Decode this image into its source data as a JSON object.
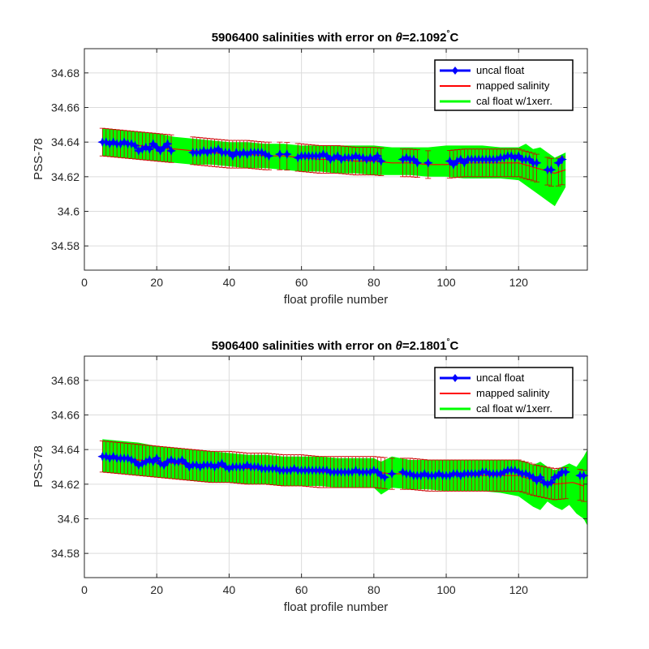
{
  "chart_data": [
    {
      "type": "line",
      "title_main": "5906400 salinities with error on ",
      "title_theta": "θ",
      "title_value": "=2.1092",
      "title_degree": "°",
      "title_unit": "C",
      "xlabel": "float profile number",
      "ylabel": "PSS-78",
      "xlim": [
        0,
        139
      ],
      "ylim": [
        34.566,
        34.694
      ],
      "xticks": [
        "0",
        "20",
        "40",
        "60",
        "80",
        "100",
        "120"
      ],
      "xtick_values": [
        0,
        20,
        40,
        60,
        80,
        100,
        120
      ],
      "yticks": [
        "34.58",
        "34.6",
        "34.62",
        "34.64",
        "34.66",
        "34.68"
      ],
      "ytick_values": [
        34.58,
        34.6,
        34.62,
        34.64,
        34.66,
        34.68
      ],
      "grid": true,
      "legend_position": "top-right",
      "legend": [
        "uncal float",
        "mapped salinity",
        "cal float w/1xerr."
      ],
      "colors": {
        "float": "#0000ff",
        "mapped": "#ff0000",
        "errorbar": "#cc0000",
        "band": "#00ff00"
      },
      "series": [
        {
          "name": "uncal float",
          "x": [
            5,
            6,
            7,
            8,
            9,
            10,
            11,
            12,
            13,
            14,
            15,
            16,
            17,
            18,
            19,
            20,
            21,
            22,
            23,
            24,
            30,
            31,
            32,
            33,
            34,
            35,
            36,
            37,
            38,
            39,
            40,
            41,
            42,
            43,
            44,
            45,
            46,
            47,
            48,
            49,
            50,
            51,
            54,
            56,
            59,
            60,
            61,
            62,
            63,
            64,
            65,
            66,
            67,
            68,
            69,
            70,
            71,
            72,
            73,
            74,
            75,
            76,
            77,
            78,
            79,
            80,
            81,
            82,
            88,
            89,
            90,
            91,
            92,
            95,
            101,
            102,
            103,
            104,
            105,
            106,
            107,
            108,
            109,
            110,
            111,
            112,
            113,
            114,
            115,
            116,
            117,
            118,
            119,
            120,
            121,
            122,
            123,
            124,
            125,
            128,
            129,
            131,
            132
          ],
          "y": [
            34.64,
            34.64,
            34.639,
            34.64,
            34.639,
            34.639,
            34.64,
            34.639,
            34.639,
            34.638,
            34.635,
            34.636,
            34.637,
            34.636,
            34.639,
            34.637,
            34.635,
            34.637,
            34.639,
            34.635,
            34.634,
            34.634,
            34.634,
            34.635,
            34.634,
            34.635,
            34.635,
            34.636,
            34.634,
            34.634,
            34.634,
            34.632,
            34.634,
            34.633,
            34.634,
            34.633,
            34.634,
            34.634,
            34.634,
            34.634,
            34.633,
            34.632,
            34.633,
            34.633,
            34.631,
            34.632,
            34.632,
            34.632,
            34.632,
            34.632,
            34.632,
            34.633,
            34.632,
            34.63,
            34.631,
            34.632,
            34.63,
            34.631,
            34.631,
            34.631,
            34.632,
            34.631,
            34.631,
            34.63,
            34.631,
            34.63,
            34.632,
            34.629,
            34.63,
            34.631,
            34.63,
            34.63,
            34.628,
            34.628,
            34.629,
            34.627,
            34.629,
            34.63,
            34.628,
            34.63,
            34.63,
            34.63,
            34.63,
            34.63,
            34.63,
            34.63,
            34.63,
            34.63,
            34.631,
            34.631,
            34.632,
            34.632,
            34.631,
            34.632,
            34.63,
            34.63,
            34.63,
            34.628,
            34.628,
            34.624,
            34.624,
            34.628,
            34.63
          ]
        },
        {
          "name": "mapped salinity",
          "x": [
            5,
            10,
            15,
            20,
            25,
            30,
            35,
            40,
            45,
            50,
            55,
            60,
            65,
            70,
            75,
            80,
            85,
            90,
            95,
            100,
            105,
            110,
            115,
            120,
            125,
            130,
            133
          ],
          "y": [
            34.64,
            34.639,
            34.638,
            34.637,
            34.636,
            34.635,
            34.634,
            34.633,
            34.633,
            34.632,
            34.632,
            34.631,
            34.63,
            34.63,
            34.629,
            34.629,
            34.628,
            34.628,
            34.627,
            34.627,
            34.628,
            34.628,
            34.628,
            34.628,
            34.625,
            34.622,
            34.624
          ]
        }
      ],
      "band": {
        "x": [
          5,
          10,
          15,
          20,
          25,
          30,
          35,
          40,
          45,
          50,
          55,
          60,
          65,
          70,
          75,
          80,
          85,
          90,
          95,
          100,
          105,
          110,
          115,
          120,
          122,
          124,
          126,
          128,
          130,
          133
        ],
        "upper": [
          34.648,
          34.647,
          34.646,
          34.645,
          34.643,
          34.642,
          34.641,
          34.64,
          34.64,
          34.639,
          34.639,
          34.638,
          34.638,
          34.638,
          34.638,
          34.638,
          34.637,
          34.637,
          34.637,
          34.638,
          34.638,
          34.638,
          34.637,
          34.637,
          34.639,
          34.636,
          34.637,
          34.634,
          34.631,
          34.634
        ],
        "lower": [
          34.632,
          34.631,
          34.63,
          34.629,
          34.628,
          34.627,
          34.627,
          34.626,
          34.625,
          34.625,
          34.624,
          34.623,
          34.623,
          34.622,
          34.622,
          34.621,
          34.621,
          34.621,
          34.62,
          34.62,
          34.619,
          34.619,
          34.619,
          34.618,
          34.615,
          34.612,
          34.609,
          34.606,
          34.603,
          34.614
        ]
      },
      "error_halfwidth": 0.008
    },
    {
      "type": "line",
      "title_main": "5906400 salinities with error on ",
      "title_theta": "θ",
      "title_value": "=2.1801",
      "title_degree": "°",
      "title_unit": "C",
      "xlabel": "float profile number",
      "ylabel": "PSS-78",
      "xlim": [
        0,
        139
      ],
      "ylim": [
        34.566,
        34.694
      ],
      "xticks": [
        "0",
        "20",
        "40",
        "60",
        "80",
        "100",
        "120"
      ],
      "xtick_values": [
        0,
        20,
        40,
        60,
        80,
        100,
        120
      ],
      "yticks": [
        "34.58",
        "34.6",
        "34.62",
        "34.64",
        "34.66",
        "34.68"
      ],
      "ytick_values": [
        34.58,
        34.6,
        34.62,
        34.64,
        34.66,
        34.68
      ],
      "grid": true,
      "legend_position": "top-right",
      "legend": [
        "uncal float",
        "mapped salinity",
        "cal float w/1xerr."
      ],
      "colors": {
        "float": "#0000ff",
        "mapped": "#ff0000",
        "errorbar": "#cc0000",
        "band": "#00ff00"
      },
      "series": [
        {
          "name": "uncal float",
          "x": [
            5,
            6,
            7,
            8,
            9,
            10,
            11,
            12,
            13,
            14,
            15,
            16,
            17,
            18,
            19,
            20,
            21,
            22,
            23,
            24,
            25,
            26,
            27,
            28,
            29,
            30,
            31,
            32,
            33,
            34,
            35,
            36,
            37,
            38,
            39,
            40,
            41,
            42,
            43,
            44,
            45,
            46,
            47,
            48,
            49,
            50,
            51,
            52,
            53,
            54,
            55,
            56,
            57,
            58,
            59,
            60,
            61,
            62,
            63,
            64,
            65,
            66,
            67,
            68,
            69,
            70,
            71,
            72,
            73,
            74,
            75,
            76,
            77,
            78,
            79,
            80,
            81,
            82,
            83,
            85,
            88,
            89,
            90,
            91,
            92,
            93,
            94,
            95,
            96,
            97,
            98,
            99,
            100,
            101,
            102,
            103,
            104,
            105,
            106,
            107,
            108,
            109,
            110,
            111,
            112,
            113,
            114,
            115,
            116,
            117,
            118,
            119,
            120,
            121,
            122,
            123,
            124,
            125,
            126,
            127,
            128,
            129,
            130,
            131,
            132,
            133,
            137,
            138
          ],
          "y": [
            34.636,
            34.636,
            34.635,
            34.636,
            34.635,
            34.635,
            34.635,
            34.635,
            34.634,
            34.633,
            34.631,
            34.632,
            34.633,
            34.634,
            34.633,
            34.635,
            34.632,
            34.631,
            34.633,
            34.634,
            34.633,
            34.633,
            34.634,
            34.632,
            34.63,
            34.631,
            34.631,
            34.63,
            34.631,
            34.631,
            34.631,
            34.63,
            34.631,
            34.632,
            34.63,
            34.629,
            34.63,
            34.63,
            34.63,
            34.63,
            34.631,
            34.63,
            34.63,
            34.63,
            34.629,
            34.629,
            34.629,
            34.629,
            34.629,
            34.628,
            34.628,
            34.628,
            34.628,
            34.629,
            34.628,
            34.628,
            34.628,
            34.628,
            34.628,
            34.628,
            34.628,
            34.628,
            34.628,
            34.627,
            34.627,
            34.627,
            34.627,
            34.627,
            34.627,
            34.627,
            34.628,
            34.627,
            34.627,
            34.627,
            34.627,
            34.628,
            34.627,
            34.625,
            34.624,
            34.626,
            34.627,
            34.626,
            34.626,
            34.625,
            34.625,
            34.625,
            34.626,
            34.625,
            34.625,
            34.625,
            34.626,
            34.625,
            34.625,
            34.625,
            34.626,
            34.626,
            34.625,
            34.626,
            34.626,
            34.626,
            34.626,
            34.626,
            34.627,
            34.627,
            34.626,
            34.626,
            34.626,
            34.626,
            34.627,
            34.628,
            34.628,
            34.628,
            34.627,
            34.626,
            34.626,
            34.625,
            34.624,
            34.622,
            34.624,
            34.621,
            34.62,
            34.621,
            34.624,
            34.625,
            34.627,
            34.627,
            34.625,
            34.625
          ],
          "_shadow": true
        },
        {
          "name": "mapped salinity",
          "x": [
            5,
            10,
            15,
            20,
            25,
            30,
            35,
            40,
            45,
            50,
            55,
            60,
            65,
            70,
            75,
            80,
            85,
            90,
            95,
            100,
            105,
            110,
            115,
            120,
            125,
            130,
            135,
            138
          ],
          "y": [
            34.636,
            34.635,
            34.634,
            34.633,
            34.632,
            34.631,
            34.63,
            34.63,
            34.629,
            34.629,
            34.628,
            34.628,
            34.627,
            34.627,
            34.627,
            34.627,
            34.626,
            34.626,
            34.625,
            34.625,
            34.625,
            34.625,
            34.625,
            34.625,
            34.622,
            34.62,
            34.621,
            34.619
          ]
        }
      ],
      "band": {
        "x": [
          5,
          10,
          15,
          20,
          25,
          30,
          35,
          40,
          45,
          50,
          55,
          60,
          65,
          70,
          75,
          80,
          82,
          85,
          90,
          95,
          100,
          105,
          110,
          115,
          120,
          122,
          124,
          126,
          128,
          130,
          132,
          134,
          136,
          138,
          139
        ],
        "upper": [
          34.646,
          34.645,
          34.644,
          34.642,
          34.641,
          34.64,
          34.639,
          34.638,
          34.637,
          34.637,
          34.636,
          34.636,
          34.636,
          34.635,
          34.635,
          34.635,
          34.633,
          34.636,
          34.634,
          34.634,
          34.634,
          34.634,
          34.634,
          34.634,
          34.634,
          34.633,
          34.631,
          34.633,
          34.63,
          34.628,
          34.63,
          34.632,
          34.63,
          34.636,
          34.64
        ],
        "lower": [
          34.627,
          34.626,
          34.625,
          34.624,
          34.623,
          34.622,
          34.621,
          34.621,
          34.62,
          34.62,
          34.619,
          34.619,
          34.619,
          34.618,
          34.618,
          34.618,
          34.614,
          34.618,
          34.617,
          34.617,
          34.616,
          34.616,
          34.616,
          34.615,
          34.613,
          34.61,
          34.607,
          34.605,
          34.61,
          34.607,
          34.605,
          34.608,
          34.603,
          34.6,
          34.596
        ]
      },
      "error_halfwidth": 0.009
    }
  ]
}
